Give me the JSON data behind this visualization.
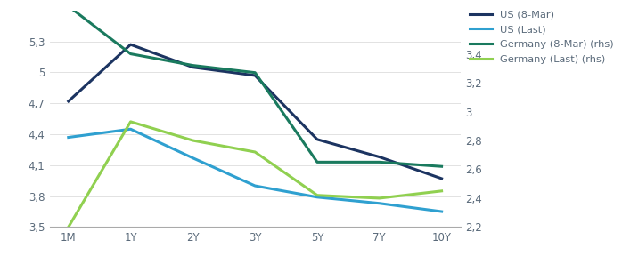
{
  "x_labels": [
    "1M",
    "1Y",
    "2Y",
    "3Y",
    "5Y",
    "7Y",
    "10Y"
  ],
  "x_positions": [
    0,
    1,
    2,
    3,
    4,
    5,
    6
  ],
  "us_8mar": [
    4.72,
    5.27,
    5.05,
    4.97,
    4.35,
    4.18,
    3.97
  ],
  "us_last": [
    4.37,
    4.45,
    4.17,
    3.9,
    3.79,
    3.73,
    3.65
  ],
  "de_8mar": [
    3.73,
    3.4,
    3.32,
    3.27,
    2.65,
    2.65,
    2.62
  ],
  "de_last": [
    2.2,
    2.93,
    2.8,
    2.72,
    2.42,
    2.4,
    2.45
  ],
  "color_us_8mar": "#1c3461",
  "color_us_last": "#2fa0d0",
  "color_de_8mar": "#1a7a5e",
  "color_de_last": "#90d050",
  "ylim_left": [
    3.5,
    5.6
  ],
  "ylim_right": [
    2.2,
    3.7
  ],
  "yticks_left": [
    3.5,
    3.8,
    4.1,
    4.4,
    4.7,
    5.0,
    5.3
  ],
  "yticks_right": [
    2.2,
    2.4,
    2.6,
    2.8,
    3.0,
    3.2,
    3.4
  ],
  "ytick_labels_left": [
    "3,5",
    "3,8",
    "4,1",
    "4,4",
    "4,7",
    "5",
    "5,3"
  ],
  "ytick_labels_right": [
    "2,2",
    "2,4",
    "2,6",
    "2,8",
    "3",
    "3,2",
    "3,4"
  ],
  "legend_labels": [
    "US (8-Mar)",
    "US (Last)",
    "Germany (8-Mar) (rhs)",
    "Germany (Last) (rhs)"
  ],
  "linewidth": 2.2,
  "figsize": [
    6.98,
    2.97
  ],
  "dpi": 100
}
